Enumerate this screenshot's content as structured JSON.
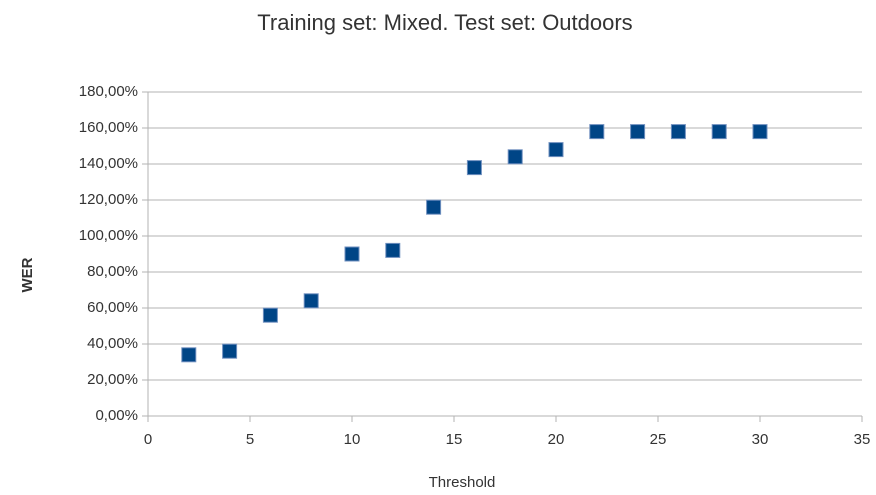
{
  "chart_data": {
    "type": "scatter",
    "title": "Training set: Mixed. Test set: Outdoors",
    "x_label": "Threshold",
    "y_label": "WER",
    "x": [
      2,
      4,
      6,
      8,
      10,
      12,
      14,
      16,
      18,
      20,
      22,
      24,
      26,
      28,
      30
    ],
    "values": [
      34,
      36,
      56,
      64,
      90,
      92,
      116,
      138,
      144,
      148,
      158,
      158,
      158,
      158,
      158
    ],
    "color": "#004586",
    "xlim": [
      0,
      35
    ],
    "xticks": [
      0,
      5,
      10,
      15,
      20,
      25,
      30,
      35
    ],
    "ylim": [
      0,
      180
    ],
    "yticks": [
      {
        "value": 0,
        "label": "0,00%"
      },
      {
        "value": 20,
        "label": "20,00%"
      },
      {
        "value": 40,
        "label": "40,00%"
      },
      {
        "value": 60,
        "label": "60,00%"
      },
      {
        "value": 80,
        "label": "80,00%"
      },
      {
        "value": 100,
        "label": "100,00%"
      },
      {
        "value": 120,
        "label": "120,00%"
      },
      {
        "value": 140,
        "label": "140,00%"
      },
      {
        "value": 160,
        "label": "160,00%"
      },
      {
        "value": 180,
        "label": "180,00%"
      }
    ],
    "grid": true
  }
}
